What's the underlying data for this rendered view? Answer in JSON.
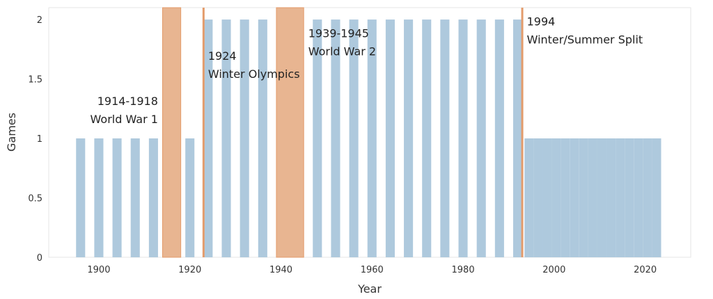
{
  "chart_data": {
    "type": "bar",
    "xlabel": "Year",
    "ylabel": "Games",
    "xlim": [
      1889,
      2030
    ],
    "ylim": [
      0,
      2.1
    ],
    "x_ticks": [
      "1900",
      "1920",
      "1940",
      "1960",
      "1980",
      "2000",
      "2020"
    ],
    "y_ticks": [
      "0",
      "0.5",
      "1",
      "1.5",
      "2"
    ],
    "grid": false,
    "bar_color": "#aec9dd",
    "highlight_color": "#e8b591",
    "highlight_edge": "#e39c6c",
    "series": [
      {
        "x": [
          1896,
          1900,
          1904,
          1908,
          1912,
          1920,
          1924,
          1928,
          1932,
          1936,
          1948,
          1952,
          1956,
          1960,
          1964,
          1968,
          1972,
          1976,
          1980,
          1984,
          1988,
          1992,
          1994,
          1996,
          1998,
          2000,
          2002,
          2004,
          2006,
          2008,
          2010,
          2012,
          2014,
          2016,
          2018,
          2020,
          2022
        ],
        "values": [
          1,
          1,
          1,
          1,
          1,
          1,
          2,
          2,
          2,
          2,
          2,
          2,
          2,
          2,
          2,
          2,
          2,
          2,
          2,
          2,
          2,
          2,
          1,
          1,
          1,
          1,
          1,
          1,
          1,
          1,
          1,
          1,
          1,
          1,
          1,
          1,
          1
        ]
      }
    ],
    "shaded_periods": [
      {
        "start": 1914,
        "end": 1918
      },
      {
        "start": 1939,
        "end": 1945
      }
    ],
    "event_lines": [
      1923,
      1993
    ],
    "annotations": [
      {
        "line1": "1914-1918",
        "line2": "World War 1",
        "x": 1913,
        "y": 1.28,
        "align": "end"
      },
      {
        "line1": "1924",
        "line2": "Winter Olympics",
        "x": 1924,
        "y": 1.66,
        "align": "start"
      },
      {
        "line1": "1939-1945",
        "line2": "World War 2",
        "x": 1946,
        "y": 1.85,
        "align": "start"
      },
      {
        "line1": "1994",
        "line2": "Winter/Summer Split",
        "x": 1994,
        "y": 1.95,
        "align": "start"
      }
    ]
  }
}
